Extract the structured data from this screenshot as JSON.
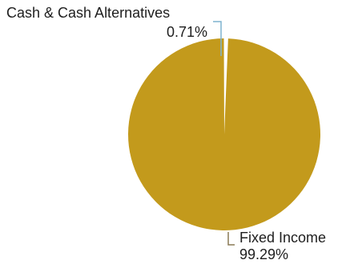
{
  "chart_data": {
    "type": "pie",
    "title": "",
    "slices": [
      {
        "label": "Cash & Cash Alternatives",
        "value_label": "0.71%",
        "value": 0.71,
        "color": "#ffffff"
      },
      {
        "label": "Fixed Income",
        "value_label": "99.29%",
        "value": 99.29,
        "color": "#c39a1c"
      }
    ],
    "leader_line_color": "#7fb3cf",
    "legend": "none"
  }
}
